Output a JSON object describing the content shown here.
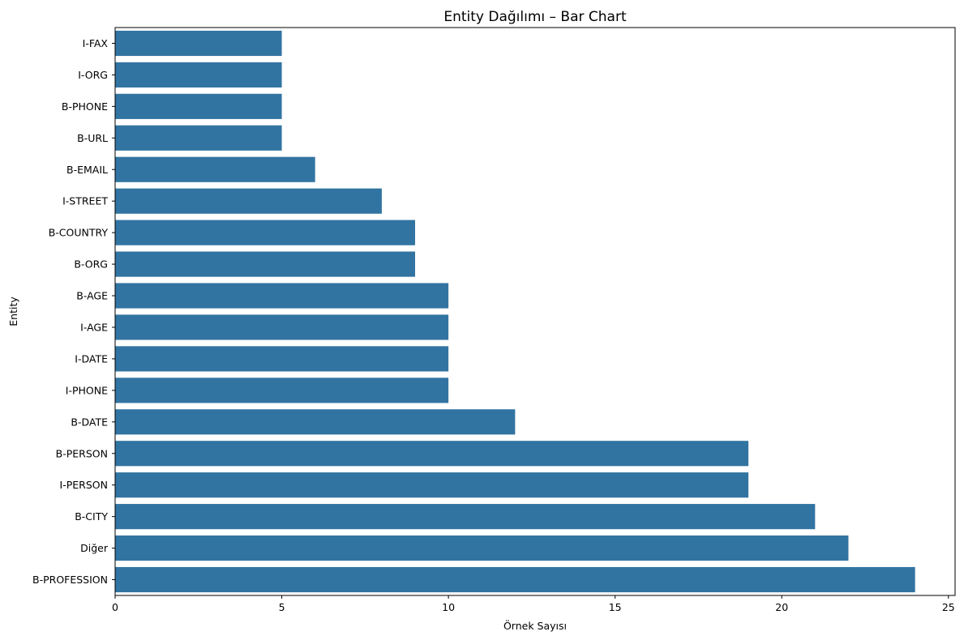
{
  "chart_data": {
    "type": "bar",
    "orientation": "horizontal",
    "title": "Entity Dağılımı – Bar Chart",
    "xlabel": "Örnek Sayısı",
    "ylabel": "Entity",
    "xlim": [
      0,
      25.2
    ],
    "xticks": [
      0,
      5,
      10,
      15,
      20,
      25
    ],
    "grid": false,
    "bar_color": "#3274a1",
    "categories": [
      "I-FAX",
      "I-ORG",
      "B-PHONE",
      "B-URL",
      "B-EMAIL",
      "I-STREET",
      "B-COUNTRY",
      "B-ORG",
      "B-AGE",
      "I-AGE",
      "I-DATE",
      "I-PHONE",
      "B-DATE",
      "B-PERSON",
      "I-PERSON",
      "B-CITY",
      "Diğer",
      "B-PROFESSION"
    ],
    "values": [
      5,
      5,
      5,
      5,
      6,
      8,
      9,
      9,
      10,
      10,
      10,
      10,
      12,
      19,
      19,
      21,
      22,
      24
    ]
  }
}
